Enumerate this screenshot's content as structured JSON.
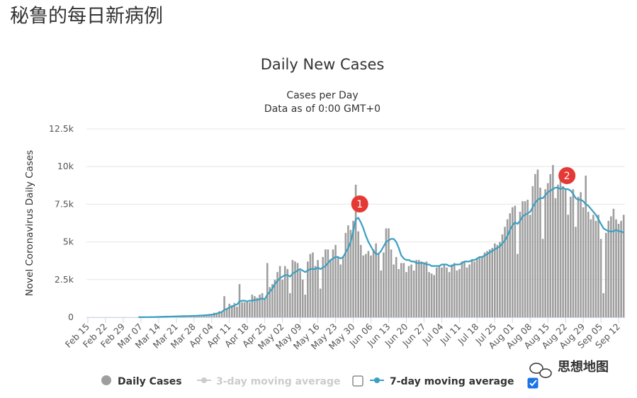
{
  "page_title": "秘鲁的每日新病例",
  "watermark": "思想地图",
  "chart_data": {
    "type": "bar",
    "title": "Daily New Cases",
    "subtitle": [
      "Cases per Day",
      "Data as of 0:00 GMT+0"
    ],
    "y_label": "Novel Coronavirus Daily Cases",
    "annotations": [
      "1",
      "2"
    ],
    "categories": [
      "Feb 15",
      null,
      null,
      null,
      null,
      null,
      null,
      "Feb 22",
      null,
      null,
      null,
      null,
      null,
      null,
      "Feb 29",
      null,
      null,
      null,
      null,
      null,
      null,
      "Mar 07",
      null,
      null,
      null,
      null,
      null,
      null,
      "Mar 14",
      null,
      null,
      null,
      null,
      null,
      null,
      "Mar 21",
      null,
      null,
      null,
      null,
      null,
      null,
      "Mar 28",
      null,
      null,
      null,
      null,
      null,
      null,
      "Apr 04",
      null,
      null,
      null,
      null,
      null,
      null,
      "Apr 11",
      null,
      null,
      null,
      null,
      null,
      null,
      "Apr 18",
      null,
      null,
      null,
      null,
      null,
      null,
      "Apr 25",
      null,
      null,
      null,
      null,
      null,
      null,
      "May 02",
      null,
      null,
      null,
      null,
      null,
      null,
      "May 09",
      null,
      null,
      null,
      null,
      null,
      null,
      "May 16",
      null,
      null,
      null,
      null,
      null,
      null,
      "May 23",
      null,
      null,
      null,
      null,
      null,
      null,
      "May 30",
      null,
      null,
      null,
      null,
      null,
      null,
      "Jun 06",
      null,
      null,
      null,
      null,
      null,
      null,
      "Jun 13",
      null,
      null,
      null,
      null,
      null,
      null,
      "Jun 20",
      null,
      null,
      null,
      null,
      null,
      null,
      "Jun 27",
      null,
      null,
      null,
      null,
      null,
      null,
      "Jul 04",
      null,
      null,
      null,
      null,
      null,
      null,
      "Jul 11",
      null,
      null,
      null,
      null,
      null,
      null,
      "Jul 18",
      null,
      null,
      null,
      null,
      null,
      null,
      "Jul 25",
      null,
      null,
      null,
      null,
      null,
      null,
      "Aug 01",
      null,
      null,
      null,
      null,
      null,
      null,
      "Aug 08",
      null,
      null,
      null,
      null,
      null,
      null,
      "Aug 15",
      null,
      null,
      null,
      null,
      null,
      null,
      "Aug 22",
      null,
      null,
      null,
      null,
      null,
      null,
      "Aug 29",
      null,
      null,
      null,
      null,
      null,
      null,
      "Sep 05",
      null,
      null,
      null,
      null,
      null,
      null,
      "Sep 12",
      null,
      null
    ],
    "series": [
      {
        "name": "Daily Cases",
        "type": "bar",
        "color": "#9e9e9e",
        "values": [
          null,
          null,
          null,
          null,
          null,
          null,
          null,
          null,
          null,
          null,
          null,
          null,
          null,
          null,
          null,
          null,
          null,
          null,
          null,
          null,
          1,
          0,
          5,
          2,
          0,
          13,
          6,
          5,
          33,
          16,
          31,
          0,
          39,
          8,
          67,
          5,
          35,
          80,
          50,
          95,
          48,
          88,
          60,
          60,
          80,
          100,
          100,
          150,
          200,
          150,
          300,
          250,
          400,
          350,
          1400,
          600,
          900,
          800,
          950,
          700,
          2200,
          1000,
          1000,
          1100,
          1000,
          1500,
          1400,
          1300,
          1500,
          1600,
          1200,
          3600,
          2000,
          2200,
          2500,
          3000,
          3400,
          2500,
          3400,
          3200,
          1600,
          3800,
          3700,
          3600,
          3100,
          2500,
          1500,
          3700,
          4200,
          4300,
          3400,
          3800,
          1900,
          4000,
          4500,
          4500,
          3800,
          4500,
          4800,
          4000,
          3500,
          4000,
          5600,
          6100,
          5800,
          6400,
          8800,
          5700,
          4800,
          4100,
          4200,
          4400,
          4100,
          4500,
          4900,
          4200,
          3100,
          4300,
          5900,
          5900,
          4500,
          3500,
          4000,
          3200,
          3600,
          3600,
          3000,
          3400,
          3500,
          3100,
          3800,
          3800,
          3700,
          3600,
          3700,
          3000,
          2900,
          2800,
          3300,
          3400,
          3300,
          3500,
          3300,
          3000,
          3500,
          3600,
          3100,
          3200,
          3700,
          3700,
          3300,
          3500,
          3800,
          3700,
          3900,
          4000,
          4000,
          4300,
          4400,
          4500,
          4600,
          4900,
          4800,
          5000,
          5500,
          6000,
          6500,
          6900,
          7300,
          7400,
          4200,
          7000,
          7700,
          7700,
          7800,
          6800,
          8700,
          9500,
          9800,
          8600,
          5200,
          8500,
          8900,
          9500,
          10100,
          7900,
          8800,
          9100,
          8700,
          8500,
          6800,
          8000,
          8500,
          6000,
          8000,
          8300,
          7300,
          9400,
          7000,
          6500,
          6800,
          6400,
          6800,
          5200,
          1600,
          5600,
          6400,
          6700,
          7200,
          6500,
          6200,
          6400,
          6800
        ]
      },
      {
        "name": "3-day moving average",
        "type": "line",
        "color": "#cccccc",
        "visible": false
      },
      {
        "name": "7-day moving average",
        "type": "line",
        "color": "#3a9fc1",
        "visible": true,
        "values": [
          null,
          null,
          null,
          null,
          null,
          null,
          null,
          null,
          null,
          null,
          null,
          null,
          null,
          null,
          null,
          null,
          null,
          null,
          null,
          null,
          5,
          5,
          6,
          8,
          10,
          12,
          14,
          18,
          22,
          28,
          35,
          40,
          45,
          50,
          55,
          60,
          65,
          70,
          75,
          80,
          85,
          90,
          95,
          100,
          110,
          120,
          130,
          140,
          160,
          180,
          200,
          250,
          300,
          350,
          500,
          550,
          650,
          700,
          800,
          850,
          1050,
          1100,
          1100,
          1050,
          1100,
          1100,
          1150,
          1150,
          1200,
          1250,
          1200,
          1500,
          1700,
          1900,
          2200,
          2400,
          2600,
          2700,
          2800,
          2800,
          2700,
          2900,
          3000,
          3100,
          3200,
          3100,
          3000,
          3100,
          3200,
          3200,
          3200,
          3300,
          3200,
          3300,
          3400,
          3600,
          3800,
          3900,
          4000,
          4000,
          3900,
          4000,
          4300,
          4600,
          5000,
          5700,
          6500,
          6600,
          6300,
          5900,
          5400,
          5000,
          4700,
          4400,
          4200,
          4200,
          4400,
          4700,
          5000,
          5100,
          5200,
          5200,
          5000,
          4600,
          4100,
          3900,
          3800,
          3800,
          3700,
          3700,
          3600,
          3600,
          3600,
          3600,
          3500,
          3500,
          3400,
          3400,
          3400,
          3400,
          3500,
          3500,
          3500,
          3400,
          3400,
          3500,
          3500,
          3500,
          3600,
          3700,
          3700,
          3700,
          3800,
          3800,
          3900,
          4000,
          4000,
          4100,
          4200,
          4300,
          4400,
          4500,
          4600,
          4700,
          4900,
          5100,
          5400,
          5800,
          6100,
          6300,
          6200,
          6400,
          6700,
          6800,
          6900,
          7000,
          7300,
          7600,
          7800,
          7900,
          7900,
          8100,
          8300,
          8400,
          8500,
          8600,
          8600,
          8500,
          8600,
          8500,
          8500,
          8400,
          8200,
          7900,
          7800,
          7800,
          7700,
          7500,
          7400,
          7200,
          7000,
          6800,
          6500,
          6200,
          5900,
          5800,
          5700,
          5700,
          5700,
          5800,
          5700,
          5700,
          5600
        ]
      }
    ],
    "ylim": [
      0,
      12500
    ],
    "yticks": [
      0,
      {
        "value": 2500,
        "label": "2.5k"
      },
      {
        "value": 5000,
        "label": "5k"
      },
      {
        "value": 7500,
        "label": "7.5k"
      },
      {
        "value": 10000,
        "label": "10k"
      },
      {
        "value": 12500,
        "label": "12.5k"
      }
    ],
    "grid": true,
    "annotation_color": "#e53935"
  }
}
